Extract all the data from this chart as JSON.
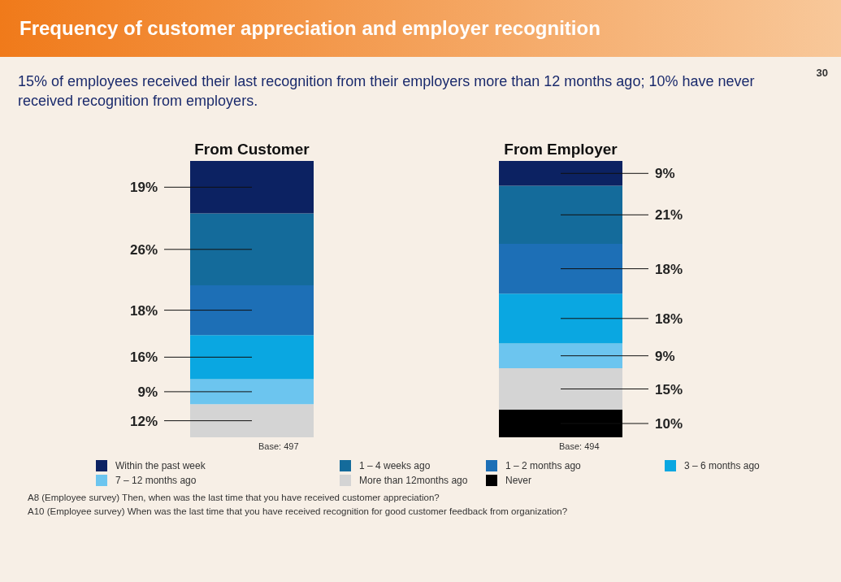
{
  "chart_data": {
    "type": "bar",
    "stacked": true,
    "title": "Frequency of customer appreciation and employer recognition",
    "subtitle": "15% of employees received their last recognition from their employers more than 12 months ago; 10% have never received recognition from employers.",
    "categories": [
      "From Customer",
      "From Employer"
    ],
    "legend": "bottom",
    "tick_labels": "x",
    "series": [
      {
        "name": "Never",
        "color": "#000000",
        "values": [
          null,
          10
        ],
        "value_labels": [
          null,
          "10%"
        ]
      },
      {
        "name": "More than 12months ago",
        "color": "#d4d4d4",
        "values": [
          12,
          15
        ],
        "value_labels": [
          "12%",
          "15%"
        ]
      },
      {
        "name": "7 – 12 months ago",
        "color": "#6cc5ef",
        "values": [
          9,
          9
        ],
        "value_labels": [
          "9%",
          "9%"
        ]
      },
      {
        "name": "3 – 6 months ago",
        "color": "#0aa7e1",
        "values": [
          16,
          18
        ],
        "value_labels": [
          "16%",
          "18%"
        ]
      },
      {
        "name": "1 – 2 months ago",
        "color": "#1d6fb6",
        "values": [
          18,
          18
        ],
        "value_labels": [
          "18%",
          "18%"
        ]
      },
      {
        "name": "1 – 4 weeks ago",
        "color": "#146b9b",
        "values": [
          26,
          21
        ],
        "value_labels": [
          "26%",
          "21%"
        ]
      },
      {
        "name": "Within the past week",
        "color": "#0c2262",
        "values": [
          19,
          9
        ],
        "value_labels": [
          "19%",
          "9%"
        ]
      }
    ],
    "annotations": [
      "30",
      "Base: 497",
      "Base: 494",
      "A8 (Employee survey) Then, when was the last time that you have received customer appreciation?",
      "A10 (Employee survey) When was the last time that you have received recognition for good customer feedback from organization?"
    ]
  }
}
